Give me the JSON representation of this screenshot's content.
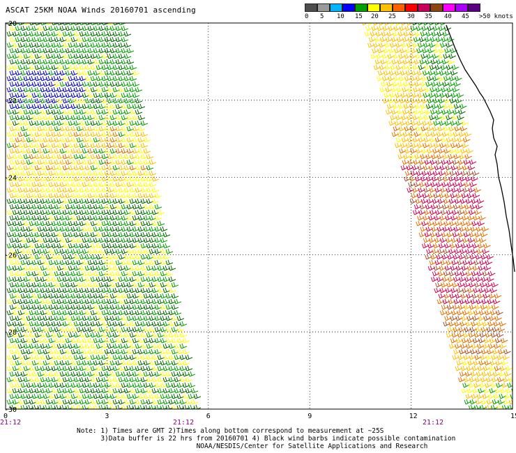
{
  "header": {
    "title": "ASCAT 25KM NOAA Winds 20160701 ascending"
  },
  "legend": {
    "colors": [
      "#4d4d4d",
      "#9a9a9a",
      "#00b4ff",
      "#0000ff",
      "#00a000",
      "#ffff00",
      "#ffc000",
      "#ff6000",
      "#ff0000",
      "#c8005a",
      "#8b4513",
      "#ff00ff",
      "#aa00ff",
      "#5a0082"
    ],
    "labels": [
      "0",
      "5",
      "10",
      "15",
      "20",
      "25",
      "30",
      "35",
      "40",
      "45",
      ">50 knots"
    ]
  },
  "map": {
    "lat_labels": [
      "-20",
      "-22",
      "-24",
      "-26",
      "-28",
      "-30"
    ],
    "lon_labels": [
      "0",
      "3",
      "6",
      "9",
      "12",
      "15"
    ],
    "times": [
      "21:12",
      "21:12",
      "21:12"
    ],
    "swath_colors": {
      "dark_green": "#006400",
      "green": "#00a000",
      "yellow": "#ffff00",
      "orange_yellow": "#ffc000",
      "orange": "#e07000",
      "red_magenta": "#d00050",
      "blue": "#0000d0",
      "brown": "#a0522d"
    }
  },
  "notes": {
    "line1": "Note: 1) Times are GMT 2)Times along bottom correspond to measurement at ~25S",
    "line2": "      3)Data buffer is 22 hrs from 20160701 4) Black wind barbs indicate possible contamination",
    "line3": "                              NOAA/NESDIS/Center for Satellite Applications and Research"
  }
}
